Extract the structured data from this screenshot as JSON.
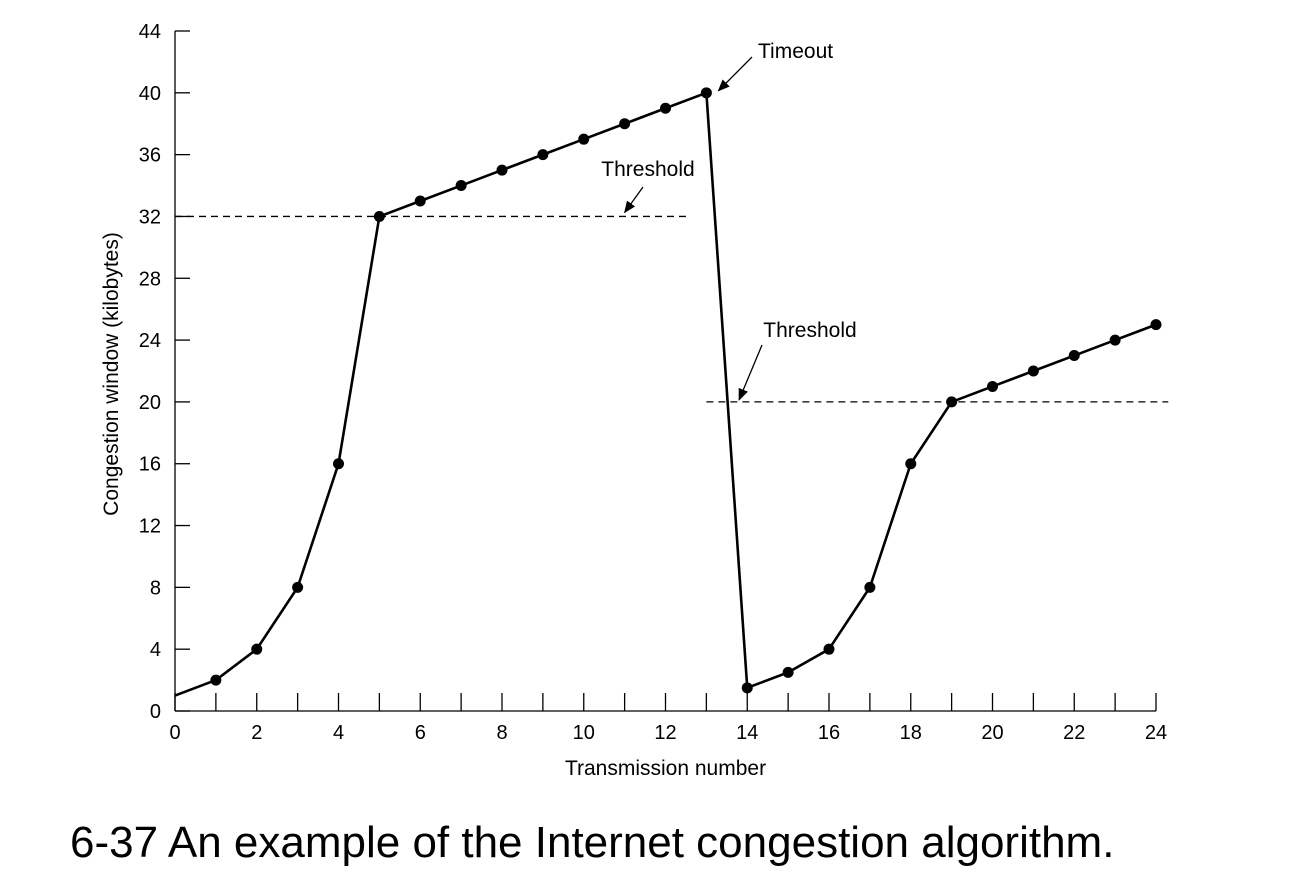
{
  "caption": "6-37 An example of the Internet congestion algorithm.",
  "chart_data": {
    "type": "line",
    "title": "",
    "xlabel": "Transmission number",
    "ylabel": "Congestion window (kilobytes)",
    "xlim": [
      0,
      24
    ],
    "ylim": [
      0,
      44
    ],
    "x_ticks": [
      0,
      2,
      4,
      6,
      8,
      10,
      12,
      14,
      16,
      18,
      20,
      22,
      24
    ],
    "x_minor_ticks": [
      1,
      3,
      5,
      7,
      9,
      11,
      13,
      15,
      17,
      19,
      21,
      23
    ],
    "y_ticks": [
      0,
      4,
      8,
      12,
      16,
      20,
      24,
      28,
      32,
      36,
      40,
      44
    ],
    "grid": false,
    "series": [
      {
        "line_start": [
          0,
          1
        ],
        "x": [
          1,
          2,
          3,
          4,
          5,
          6,
          7,
          8,
          9,
          10,
          11,
          12,
          13,
          14,
          15,
          16,
          17,
          18,
          19,
          20,
          21,
          22,
          23,
          24
        ],
        "y": [
          2,
          4,
          8,
          16,
          32,
          33,
          34,
          35,
          36,
          37,
          38,
          39,
          40,
          1.5,
          2.5,
          4,
          8,
          16,
          20,
          21,
          22,
          23,
          24,
          25
        ],
        "color": "#000000"
      }
    ],
    "reference_lines": [
      {
        "y": 32,
        "x_from": 0,
        "x_to": 12.5,
        "style": "dashed"
      },
      {
        "y": 20,
        "x_from": 13,
        "x_to": 24.3,
        "style": "dashed"
      }
    ],
    "annotations": [
      {
        "text": "Timeout",
        "points_to": [
          13,
          40
        ]
      },
      {
        "text": "Threshold",
        "points_to": [
          11,
          32
        ]
      },
      {
        "text": "Threshold",
        "points_to": [
          13.8,
          20
        ]
      }
    ]
  }
}
